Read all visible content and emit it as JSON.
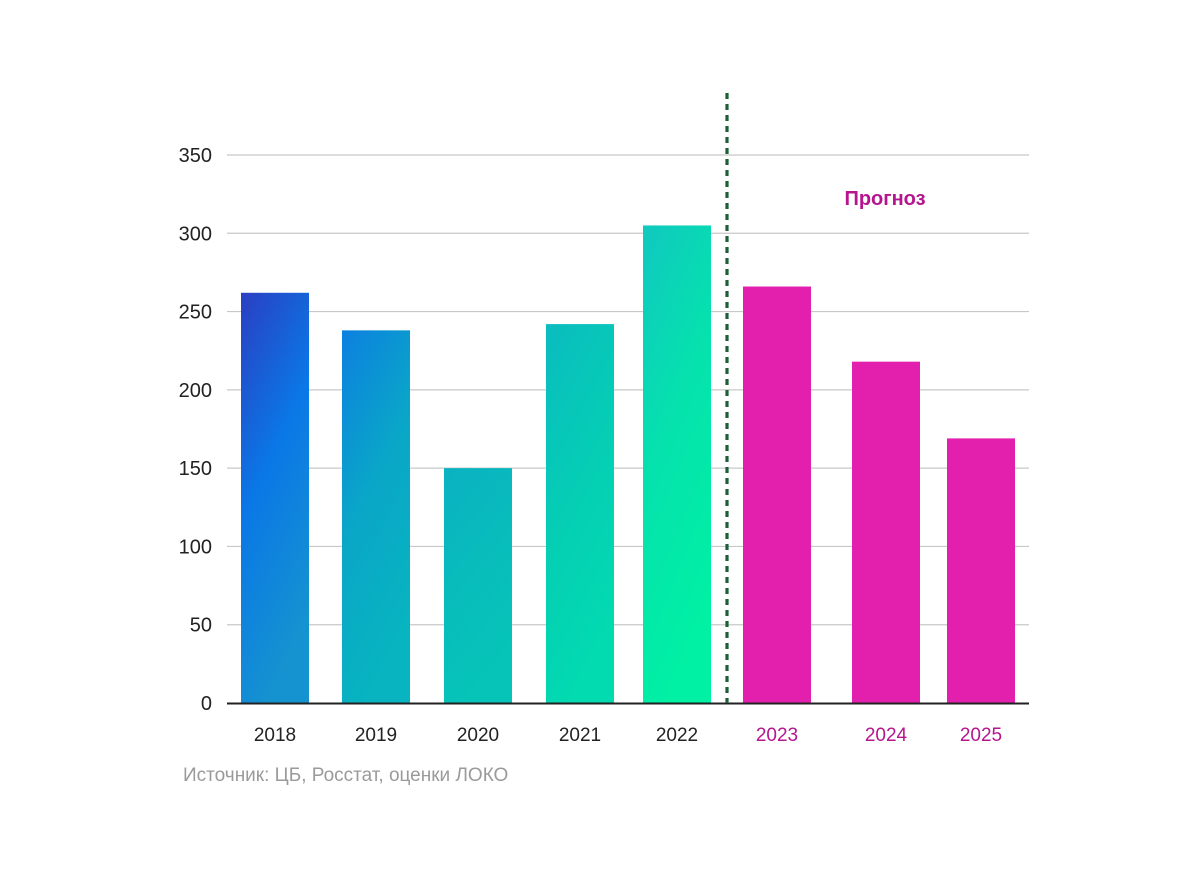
{
  "source_note": "Источник: ЦБ, Росстат, оценки ЛОКО",
  "chart_data": {
    "type": "bar",
    "categories": [
      "2018",
      "2019",
      "2020",
      "2021",
      "2022",
      "2023",
      "2024",
      "2025"
    ],
    "values": [
      262,
      238,
      150,
      242,
      305,
      266,
      218,
      169
    ],
    "ylim": [
      0,
      350
    ],
    "yticks": [
      "0",
      "50",
      "100",
      "150",
      "200",
      "250",
      "300",
      "350"
    ],
    "grid": true,
    "forecast_label": "Прогноз",
    "forecast_start_index": 5,
    "colors": {
      "forecast": "#e320ad",
      "forecast_text": "#b5158e",
      "divider": "#1e5e3a",
      "gridline": "#c8c8c8",
      "axis": "#222222",
      "text": "#222222",
      "historical_gradient": [
        [
          "#2a3fc2",
          "#0a78e6",
          "#1592d0"
        ],
        [
          "#0c80e0",
          "#0aa6c8",
          "#07b4bf"
        ],
        [
          "#0ab2c2",
          "#08bcbc",
          "#06c4b8"
        ],
        [
          "#0abcc0",
          "#05cdb5",
          "#02dab0"
        ],
        [
          "#10c8c0",
          "#05e2ad",
          "#00f0a4"
        ]
      ]
    }
  }
}
